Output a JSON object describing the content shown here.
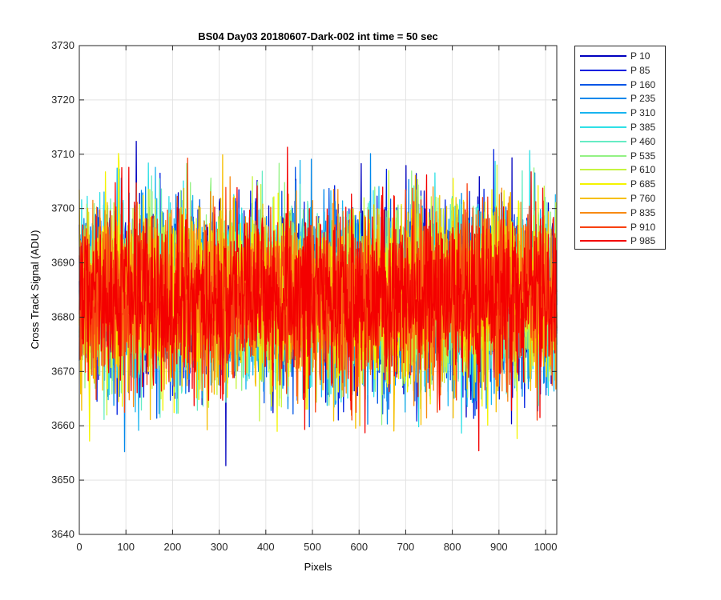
{
  "chart_data": {
    "type": "line",
    "title": "BS04 Day03 20180607-Dark-002 int time = 50 sec",
    "xlabel": "Pixels",
    "ylabel": "Cross Track Signal (ADU)",
    "xlim": [
      0,
      1024
    ],
    "ylim": [
      3640,
      3730
    ],
    "xticks": [
      0,
      100,
      200,
      300,
      400,
      500,
      600,
      700,
      800,
      900,
      1000
    ],
    "yticks": [
      3640,
      3650,
      3660,
      3670,
      3680,
      3690,
      3700,
      3710,
      3720,
      3730
    ],
    "grid": true,
    "legend_position": "outside-right",
    "noise_model": {
      "mean": 3684,
      "sigma": 8,
      "n_points": 1024
    },
    "series": [
      {
        "name": "P 10",
        "color": "#0000bf"
      },
      {
        "name": "P 85",
        "color": "#0020e0"
      },
      {
        "name": "P 160",
        "color": "#0055e6"
      },
      {
        "name": "P 235",
        "color": "#0088ec"
      },
      {
        "name": "P 310",
        "color": "#18b4f0"
      },
      {
        "name": "P 385",
        "color": "#2fe0e6"
      },
      {
        "name": "P 460",
        "color": "#66ecc4"
      },
      {
        "name": "P 535",
        "color": "#93f284"
      },
      {
        "name": "P 610",
        "color": "#c6f440"
      },
      {
        "name": "P 685",
        "color": "#f4f400"
      },
      {
        "name": "P 760",
        "color": "#f6bf00"
      },
      {
        "name": "P 835",
        "color": "#f88a12"
      },
      {
        "name": "P 910",
        "color": "#f84010"
      },
      {
        "name": "P 985",
        "color": "#f40000"
      }
    ]
  }
}
